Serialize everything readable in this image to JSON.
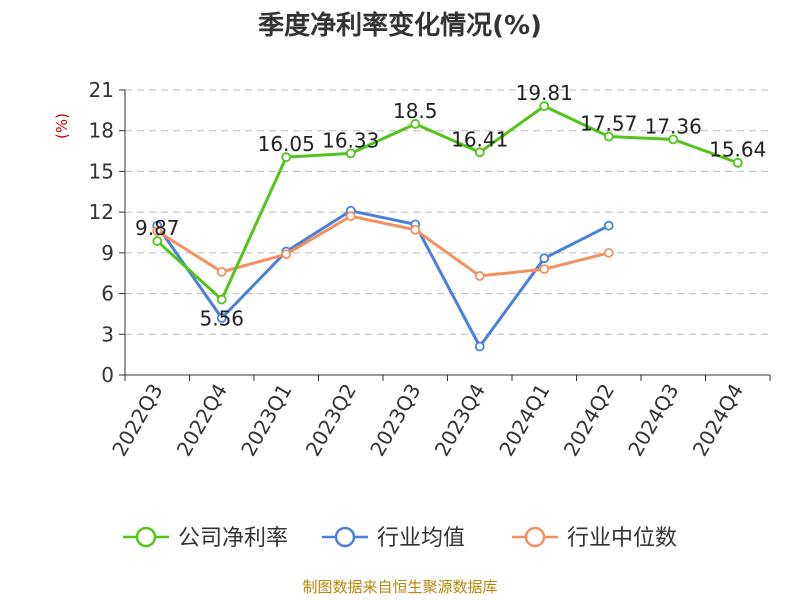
{
  "chart_data": {
    "type": "line",
    "title": "季度净利率变化情况(%)",
    "ylabel": "(%)",
    "categories": [
      "2022Q3",
      "2022Q4",
      "2023Q1",
      "2023Q2",
      "2023Q3",
      "2023Q4",
      "2024Q1",
      "2024Q2",
      "2024Q3",
      "2024Q4"
    ],
    "ylim": [
      0,
      21
    ],
    "yticks": [
      0,
      3,
      6,
      9,
      12,
      15,
      18,
      21
    ],
    "grid": true,
    "legend_position": "bottom",
    "series": [
      {
        "name": "公司净利率",
        "color": "#52c41a",
        "labeled": true,
        "labels": [
          "9.87",
          "5.56",
          "16.05",
          "16.33",
          "18.5",
          "16.41",
          "19.81",
          "17.57",
          "17.36",
          "15.64"
        ],
        "values": [
          9.87,
          5.56,
          16.05,
          16.33,
          18.5,
          16.41,
          19.81,
          17.57,
          17.36,
          15.64
        ]
      },
      {
        "name": "行业均值",
        "color": "#4a7fdb",
        "labeled": false,
        "values": [
          11.0,
          4.2,
          9.1,
          12.1,
          11.1,
          2.1,
          8.6,
          11.0,
          null,
          null
        ]
      },
      {
        "name": "行业中位数",
        "color": "#f5905e",
        "labeled": false,
        "values": [
          10.6,
          7.6,
          8.9,
          11.7,
          10.7,
          7.3,
          7.8,
          9.0,
          null,
          null
        ]
      }
    ]
  },
  "source": "制图数据来自恒生聚源数据库"
}
